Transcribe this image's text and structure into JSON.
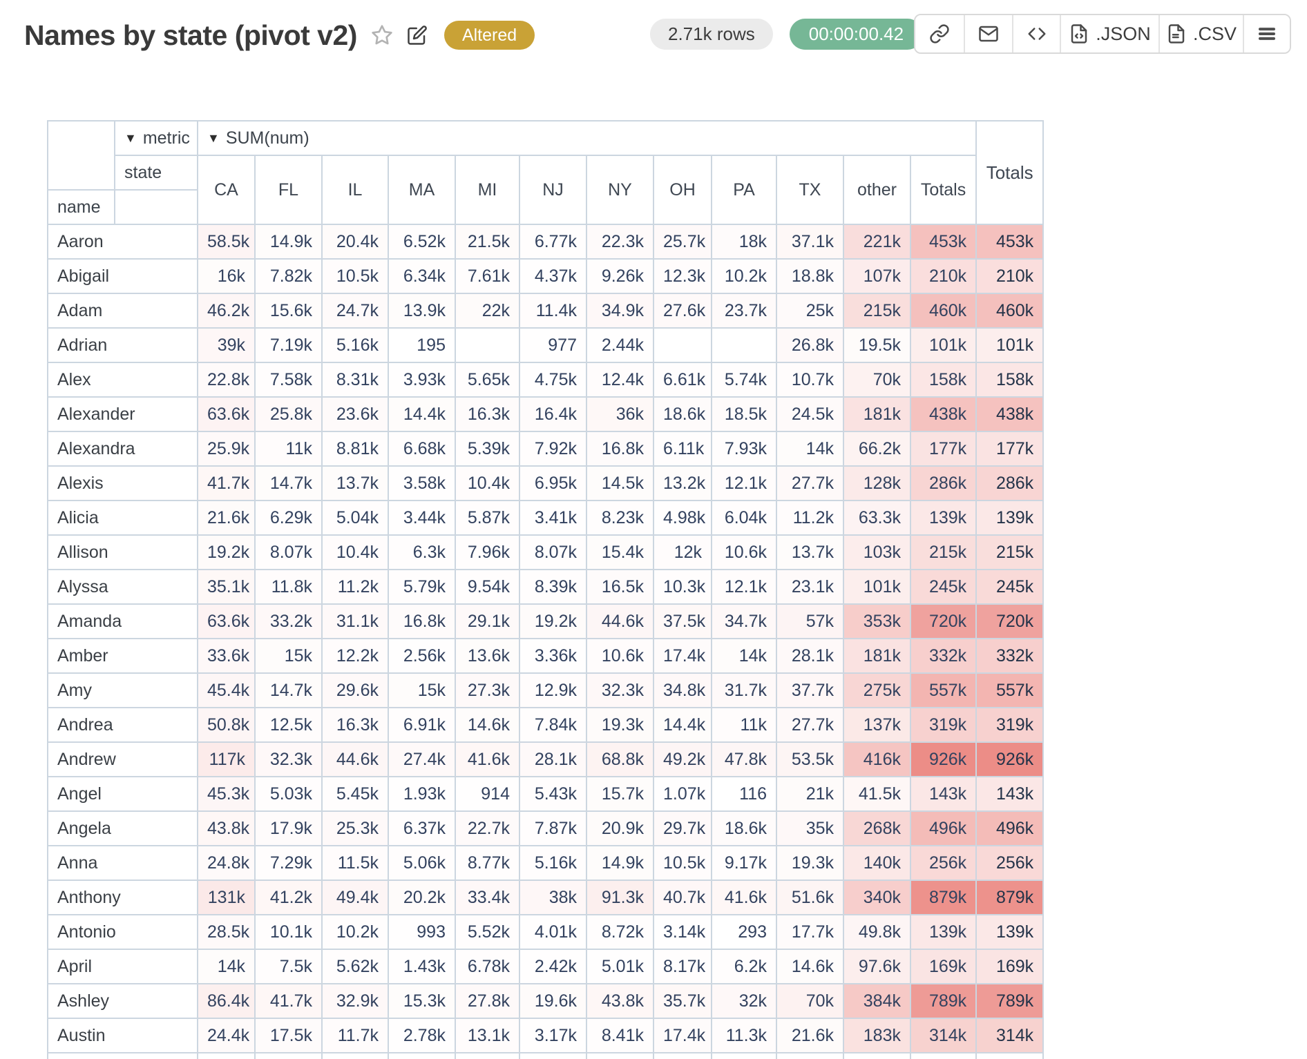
{
  "header": {
    "title": "Names by state (pivot v2)",
    "status_badge": "Altered",
    "rows_badge": "2.71k rows",
    "timer_badge": "00:00:00.42",
    "toolbar": {
      "json_label": ".JSON",
      "csv_label": ".CSV"
    }
  },
  "colors": {
    "altered_badge_bg": "#c9a236",
    "timer_badge_bg": "#76b796",
    "rows_badge_bg": "#ebebeb",
    "table_border": "#ccd6e0",
    "value_text": "#33425f",
    "heat_base_rgb": "231,112,105"
  },
  "pivot": {
    "metric_dropdown": {
      "icon": "▼",
      "label": "metric"
    },
    "sum_dropdown": {
      "icon": "▼",
      "label": "SUM(num)"
    },
    "state_label": "state",
    "name_label": "name",
    "grand_total_label": "Totals",
    "columns": [
      "CA",
      "FL",
      "IL",
      "MA",
      "MI",
      "NJ",
      "NY",
      "OH",
      "PA",
      "TX",
      "other",
      "Totals"
    ],
    "partial_row_visible": true,
    "rows": [
      {
        "name": "Aaron",
        "values": [
          "58.5k",
          "14.9k",
          "20.4k",
          "6.52k",
          "21.5k",
          "6.77k",
          "22.3k",
          "25.7k",
          "18k",
          "37.1k",
          "221k",
          "453k"
        ],
        "total": "453k"
      },
      {
        "name": "Abigail",
        "values": [
          "16k",
          "7.82k",
          "10.5k",
          "6.34k",
          "7.61k",
          "4.37k",
          "9.26k",
          "12.3k",
          "10.2k",
          "18.8k",
          "107k",
          "210k"
        ],
        "total": "210k"
      },
      {
        "name": "Adam",
        "values": [
          "46.2k",
          "15.6k",
          "24.7k",
          "13.9k",
          "22k",
          "11.4k",
          "34.9k",
          "27.6k",
          "23.7k",
          "25k",
          "215k",
          "460k"
        ],
        "total": "460k"
      },
      {
        "name": "Adrian",
        "values": [
          "39k",
          "7.19k",
          "5.16k",
          "195",
          "",
          "977",
          "2.44k",
          "",
          "",
          "26.8k",
          "19.5k",
          "101k"
        ],
        "total": "101k"
      },
      {
        "name": "Alex",
        "values": [
          "22.8k",
          "7.58k",
          "8.31k",
          "3.93k",
          "5.65k",
          "4.75k",
          "12.4k",
          "6.61k",
          "5.74k",
          "10.7k",
          "70k",
          "158k"
        ],
        "total": "158k"
      },
      {
        "name": "Alexander",
        "values": [
          "63.6k",
          "25.8k",
          "23.6k",
          "14.4k",
          "16.3k",
          "16.4k",
          "36k",
          "18.6k",
          "18.5k",
          "24.5k",
          "181k",
          "438k"
        ],
        "total": "438k"
      },
      {
        "name": "Alexandra",
        "values": [
          "25.9k",
          "11k",
          "8.81k",
          "6.68k",
          "5.39k",
          "7.92k",
          "16.8k",
          "6.11k",
          "7.93k",
          "14k",
          "66.2k",
          "177k"
        ],
        "total": "177k"
      },
      {
        "name": "Alexis",
        "values": [
          "41.7k",
          "14.7k",
          "13.7k",
          "3.58k",
          "10.4k",
          "6.95k",
          "14.5k",
          "13.2k",
          "12.1k",
          "27.7k",
          "128k",
          "286k"
        ],
        "total": "286k"
      },
      {
        "name": "Alicia",
        "values": [
          "21.6k",
          "6.29k",
          "5.04k",
          "3.44k",
          "5.87k",
          "3.41k",
          "8.23k",
          "4.98k",
          "6.04k",
          "11.2k",
          "63.3k",
          "139k"
        ],
        "total": "139k"
      },
      {
        "name": "Allison",
        "values": [
          "19.2k",
          "8.07k",
          "10.4k",
          "6.3k",
          "7.96k",
          "8.07k",
          "15.4k",
          "12k",
          "10.6k",
          "13.7k",
          "103k",
          "215k"
        ],
        "total": "215k"
      },
      {
        "name": "Alyssa",
        "values": [
          "35.1k",
          "11.8k",
          "11.2k",
          "5.79k",
          "9.54k",
          "8.39k",
          "16.5k",
          "10.3k",
          "12.1k",
          "23.1k",
          "101k",
          "245k"
        ],
        "total": "245k"
      },
      {
        "name": "Amanda",
        "values": [
          "63.6k",
          "33.2k",
          "31.1k",
          "16.8k",
          "29.1k",
          "19.2k",
          "44.6k",
          "37.5k",
          "34.7k",
          "57k",
          "353k",
          "720k"
        ],
        "total": "720k"
      },
      {
        "name": "Amber",
        "values": [
          "33.6k",
          "15k",
          "12.2k",
          "2.56k",
          "13.6k",
          "3.36k",
          "10.6k",
          "17.4k",
          "14k",
          "28.1k",
          "181k",
          "332k"
        ],
        "total": "332k"
      },
      {
        "name": "Amy",
        "values": [
          "45.4k",
          "14.7k",
          "29.6k",
          "15k",
          "27.3k",
          "12.9k",
          "32.3k",
          "34.8k",
          "31.7k",
          "37.7k",
          "275k",
          "557k"
        ],
        "total": "557k"
      },
      {
        "name": "Andrea",
        "values": [
          "50.8k",
          "12.5k",
          "16.3k",
          "6.91k",
          "14.6k",
          "7.84k",
          "19.3k",
          "14.4k",
          "11k",
          "27.7k",
          "137k",
          "319k"
        ],
        "total": "319k"
      },
      {
        "name": "Andrew",
        "values": [
          "117k",
          "32.3k",
          "44.6k",
          "27.4k",
          "41.6k",
          "28.1k",
          "68.8k",
          "49.2k",
          "47.8k",
          "53.5k",
          "416k",
          "926k"
        ],
        "total": "926k"
      },
      {
        "name": "Angel",
        "values": [
          "45.3k",
          "5.03k",
          "5.45k",
          "1.93k",
          "914",
          "5.43k",
          "15.7k",
          "1.07k",
          "116",
          "21k",
          "41.5k",
          "143k"
        ],
        "total": "143k"
      },
      {
        "name": "Angela",
        "values": [
          "43.8k",
          "17.9k",
          "25.3k",
          "6.37k",
          "22.7k",
          "7.87k",
          "20.9k",
          "29.7k",
          "18.6k",
          "35k",
          "268k",
          "496k"
        ],
        "total": "496k"
      },
      {
        "name": "Anna",
        "values": [
          "24.8k",
          "7.29k",
          "11.5k",
          "5.06k",
          "8.77k",
          "5.16k",
          "14.9k",
          "10.5k",
          "9.17k",
          "19.3k",
          "140k",
          "256k"
        ],
        "total": "256k"
      },
      {
        "name": "Anthony",
        "values": [
          "131k",
          "41.2k",
          "49.4k",
          "20.2k",
          "33.4k",
          "38k",
          "91.3k",
          "40.7k",
          "41.6k",
          "51.6k",
          "340k",
          "879k"
        ],
        "total": "879k"
      },
      {
        "name": "Antonio",
        "values": [
          "28.5k",
          "10.1k",
          "10.2k",
          "993",
          "5.52k",
          "4.01k",
          "8.72k",
          "3.14k",
          "293",
          "17.7k",
          "49.8k",
          "139k"
        ],
        "total": "139k"
      },
      {
        "name": "April",
        "values": [
          "14k",
          "7.5k",
          "5.62k",
          "1.43k",
          "6.78k",
          "2.42k",
          "5.01k",
          "8.17k",
          "6.2k",
          "14.6k",
          "97.6k",
          "169k"
        ],
        "total": "169k"
      },
      {
        "name": "Ashley",
        "values": [
          "86.4k",
          "41.7k",
          "32.9k",
          "15.3k",
          "27.8k",
          "19.6k",
          "43.8k",
          "35.7k",
          "32k",
          "70k",
          "384k",
          "789k"
        ],
        "total": "789k"
      },
      {
        "name": "Austin",
        "values": [
          "24.4k",
          "17.5k",
          "11.7k",
          "2.78k",
          "13.1k",
          "3.17k",
          "8.41k",
          "17.4k",
          "11.3k",
          "21.6k",
          "183k",
          "314k"
        ],
        "total": "314k"
      }
    ]
  }
}
